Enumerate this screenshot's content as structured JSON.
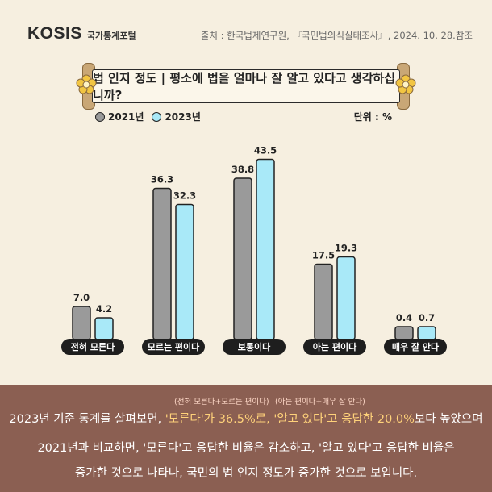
{
  "header": {
    "logo_text": "KOSIS",
    "logo_sub": "국가통계포털",
    "source": "출처 : 한국법제연구원, 『국민법의식실태조사』, 2024. 10. 28.참조"
  },
  "colors": {
    "series_2021": "#9a9a9a",
    "series_2023": "#a9e9f8",
    "footer_bg": "#8b5f52",
    "highlight": "#ffd27a",
    "page_bg": "#f6efe0"
  },
  "chart_data": {
    "type": "bar",
    "title": "법 인지 정도 | 평소에 법을 얼마나 잘 알고 있다고 생각하십니까?",
    "unit_label": "단위 : %",
    "categories": [
      "전혀 모른다",
      "모르는 편이다",
      "보통이다",
      "아는 편이다",
      "매우 잘 안다"
    ],
    "series": [
      {
        "name": "2021년",
        "values": [
          7.0,
          36.3,
          38.8,
          17.5,
          0.4
        ]
      },
      {
        "name": "2023년",
        "values": [
          4.2,
          32.3,
          43.5,
          19.3,
          0.7
        ]
      }
    ],
    "value_labels_2021": [
      "7.0",
      "36.3",
      "38.8",
      "17.5",
      "0.4"
    ],
    "value_labels_2023": [
      "4.2",
      "32.3",
      "43.5",
      "19.3",
      "0.7"
    ],
    "legend_position": "top-left",
    "grid": false
  },
  "footer": {
    "note1": "(전혀 모른다+모르는 편이다)",
    "note2": "(아는 편이다+매우 잘 안다)",
    "l1_a": "2023년 기준 통계를 살펴보면, ",
    "l1_b": "'모른다'가 36.5%로, ",
    "l1_c": "'알고 있다'고 응답한 20.0%",
    "l1_d": "보다 높았으며",
    "l2": "2021년과 비교하면, '모른다'고 응답한 비율은 감소하고, '알고 있다'고 응답한 비율은",
    "l3": "증가한 것으로 나타나, 국민의 법 인지 정도가 증가한 것으로 보입니다."
  }
}
